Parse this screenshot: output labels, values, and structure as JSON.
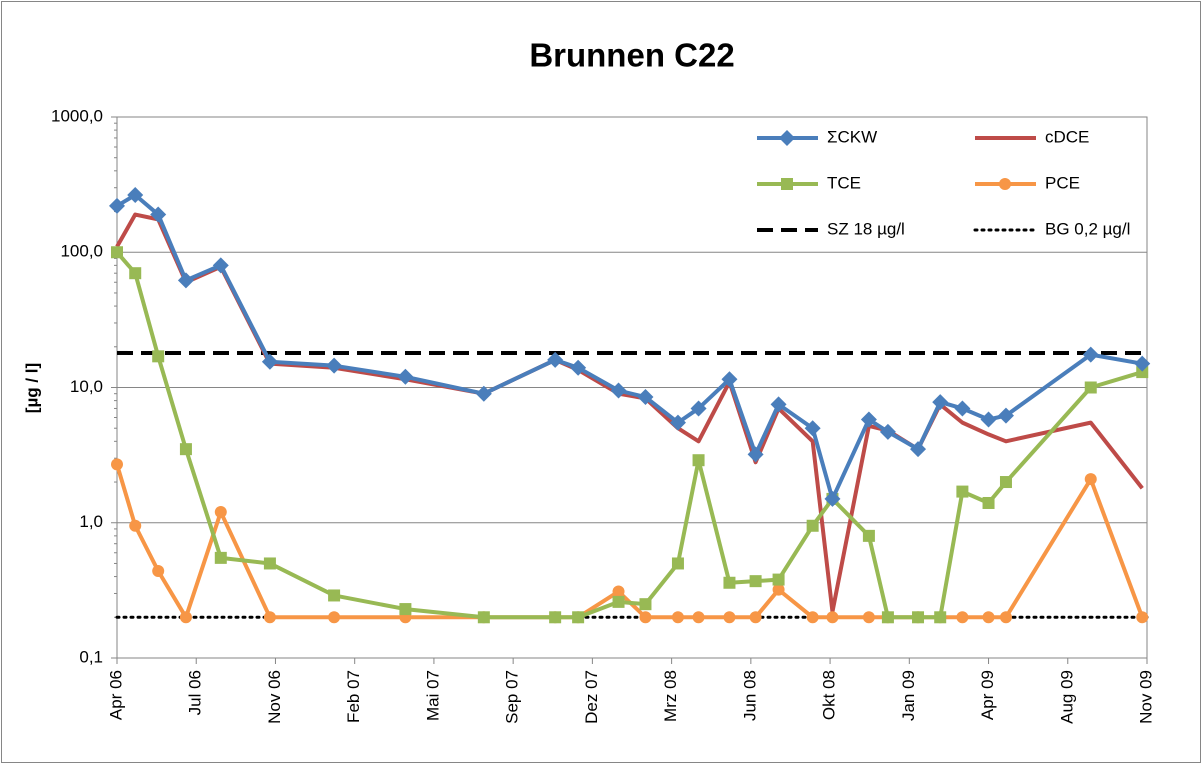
{
  "chart_data": {
    "type": "line",
    "title": "Brunnen C22",
    "y_label": "[µg / l]",
    "log_y": true,
    "grid": true,
    "xlim": [
      0,
      13
    ],
    "xticks": [
      {
        "value": 0,
        "label": "Apr 06"
      },
      {
        "value": 1,
        "label": "Jul 06"
      },
      {
        "value": 2,
        "label": "Nov 06"
      },
      {
        "value": 3,
        "label": "Feb 07"
      },
      {
        "value": 4,
        "label": "Mai 07"
      },
      {
        "value": 5,
        "label": "Sep 07"
      },
      {
        "value": 6,
        "label": "Dez 07"
      },
      {
        "value": 7,
        "label": "Mrz 08"
      },
      {
        "value": 8,
        "label": "Jun 08"
      },
      {
        "value": 9,
        "label": "Okt 08"
      },
      {
        "value": 10,
        "label": "Jan 09"
      },
      {
        "value": 11,
        "label": "Apr 09"
      },
      {
        "value": 12,
        "label": "Aug 09"
      },
      {
        "value": 13,
        "label": "Nov 09"
      }
    ],
    "ylim": [
      0.1,
      1000
    ],
    "yticks": [
      {
        "value": 0.1,
        "label": "0,1"
      },
      {
        "value": 1,
        "label": "1,0"
      },
      {
        "value": 10,
        "label": "10,0"
      },
      {
        "value": 100,
        "label": "100,0"
      },
      {
        "value": 1000,
        "label": "1000,0"
      }
    ],
    "x": [
      0,
      0.23,
      0.52,
      0.87,
      1.31,
      1.93,
      2.74,
      3.64,
      4.63,
      5.53,
      5.82,
      6.33,
      6.67,
      7.08,
      7.34,
      7.73,
      8.06,
      8.35,
      8.78,
      9.03,
      9.49,
      9.73,
      10.11,
      10.39,
      10.67,
      11.0,
      11.22,
      12.29,
      12.94
    ],
    "series": [
      {
        "name": "ΣCKW",
        "color": "#4a7ebb",
        "marker": "diamond",
        "values": [
          220,
          265,
          190,
          62,
          80,
          15.5,
          14.5,
          12,
          9,
          16,
          14,
          9.5,
          8.5,
          5.5,
          7,
          11.5,
          3.2,
          7.5,
          5,
          1.5,
          5.8,
          4.7,
          3.5,
          7.8,
          7,
          5.8,
          6.2,
          17.5,
          15
        ]
      },
      {
        "name": "cDCE",
        "color": "#be4b48",
        "marker": "none",
        "values": [
          110,
          190,
          175,
          60,
          78,
          15,
          14,
          11.5,
          9,
          16,
          13.5,
          9,
          8.3,
          5,
          4,
          11,
          2.8,
          7,
          4,
          0.22,
          5.2,
          4.8,
          3.5,
          7.5,
          5.5,
          4.5,
          4,
          5.5,
          1.8
        ]
      },
      {
        "name": "TCE",
        "color": "#98b954",
        "marker": "square",
        "values": [
          100,
          70,
          17,
          3.5,
          0.55,
          0.5,
          0.29,
          0.23,
          0.2,
          0.2,
          0.2,
          0.26,
          0.25,
          0.5,
          2.9,
          0.36,
          0.37,
          0.38,
          0.95,
          1.5,
          0.8,
          0.2,
          0.2,
          0.2,
          1.7,
          1.4,
          2.0,
          10,
          13
        ]
      },
      {
        "name": "PCE",
        "color": "#f79646",
        "marker": "circle",
        "values": [
          2.7,
          0.95,
          0.44,
          0.2,
          1.2,
          0.2,
          0.2,
          0.2,
          0.2,
          0.2,
          0.2,
          0.31,
          0.2,
          0.2,
          0.2,
          0.2,
          0.2,
          0.32,
          0.2,
          0.2,
          0.2,
          0.2,
          0.2,
          0.2,
          0.2,
          0.2,
          0.2,
          2.1,
          0.2
        ]
      }
    ],
    "reference_lines": [
      {
        "name": "SZ 18 µg/l",
        "value": 18,
        "color": "#000000",
        "style": "dashed"
      },
      {
        "name": "BG 0,2 µg/l",
        "value": 0.2,
        "color": "#000000",
        "style": "dotted"
      }
    ]
  }
}
